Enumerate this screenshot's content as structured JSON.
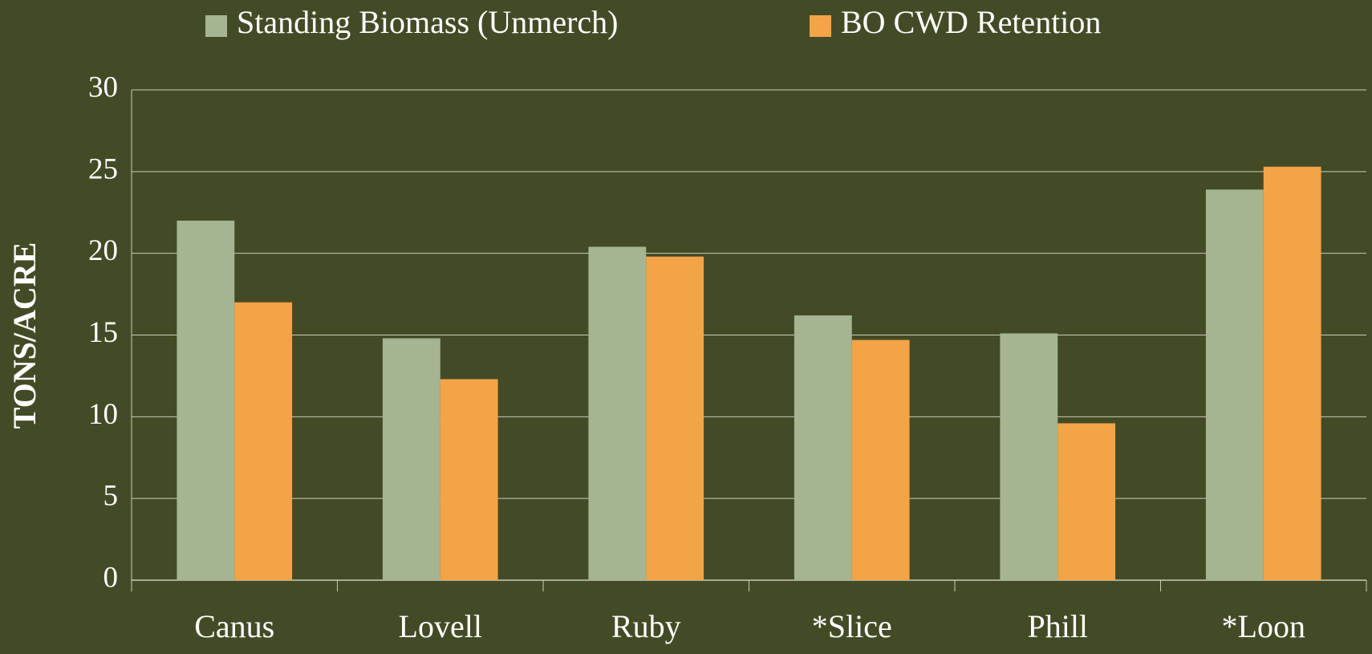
{
  "chart_data": {
    "type": "bar",
    "y_label": "TONS/ACRE",
    "categories": [
      "Canus",
      "Lovell",
      "Ruby",
      "*Slice",
      "Phill",
      "*Loon"
    ],
    "series": [
      {
        "name": "Standing Biomass (Unmerch)",
        "color": "#a5b592",
        "values": [
          22,
          14.8,
          20.4,
          16.2,
          15.1,
          23.9
        ]
      },
      {
        "name": "BO CWD Retention",
        "color": "#f3a447",
        "values": [
          17,
          12.3,
          19.8,
          14.7,
          9.6,
          25.3
        ]
      }
    ],
    "ylim": [
      0,
      30
    ],
    "yticks": [
      0,
      5,
      10,
      15,
      20,
      25,
      30
    ],
    "grid": true,
    "legend": "top"
  }
}
